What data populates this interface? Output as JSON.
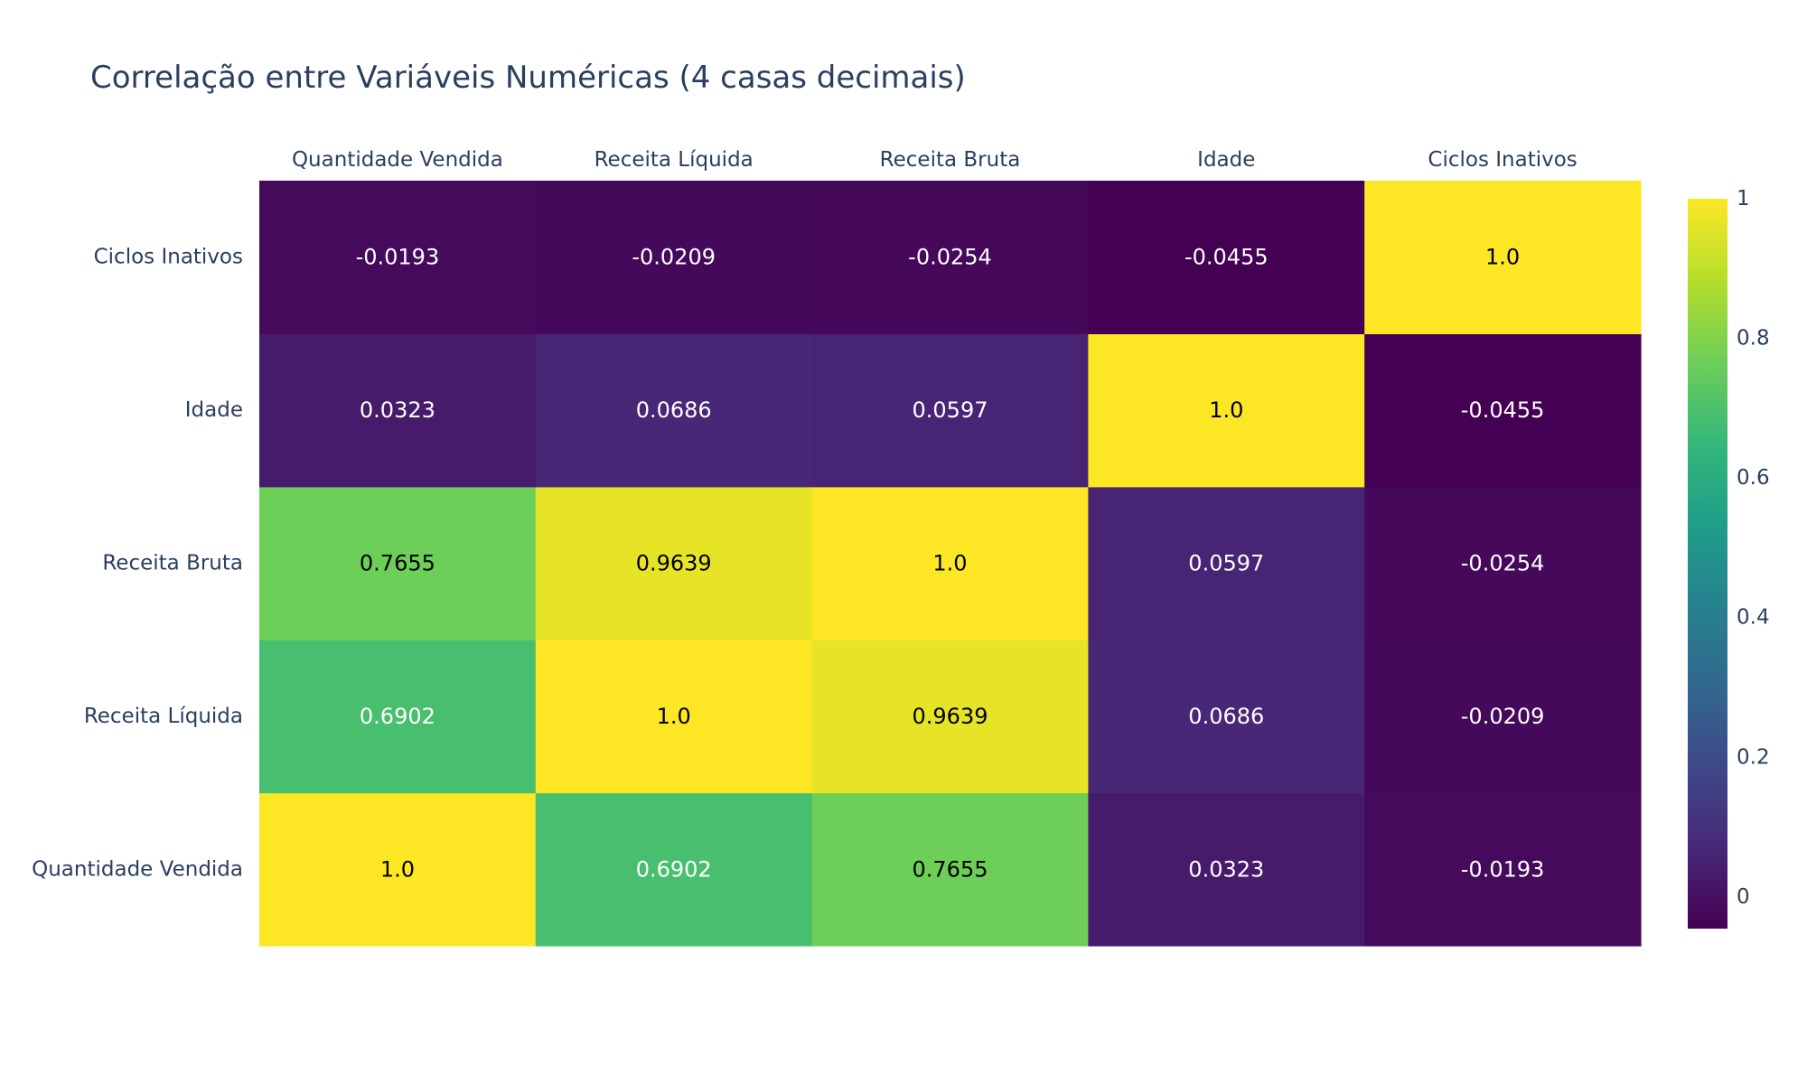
{
  "chart_data": {
    "type": "heatmap",
    "title": "Correlação entre Variáveis Numéricas (4 casas decimais)",
    "x": [
      "Quantidade Vendida",
      "Receita Líquida",
      "Receita Bruta",
      "Idade",
      "Ciclos Inativos"
    ],
    "y": [
      "Quantidade Vendida",
      "Receita Líquida",
      "Receita Bruta",
      "Idade",
      "Ciclos Inativos"
    ],
    "z": [
      [
        1.0,
        0.6902,
        0.7655,
        0.0323,
        -0.0193
      ],
      [
        0.6902,
        1.0,
        0.9639,
        0.0686,
        -0.0209
      ],
      [
        0.7655,
        0.9639,
        1.0,
        0.0597,
        -0.0254
      ],
      [
        0.0323,
        0.0686,
        0.0597,
        1.0,
        -0.0455
      ],
      [
        -0.0193,
        -0.0209,
        -0.0254,
        -0.0455,
        1.0
      ]
    ],
    "text": [
      [
        "1.0",
        "0.6902",
        "0.7655",
        "0.0323",
        "-0.0193"
      ],
      [
        "0.6902",
        "1.0",
        "0.9639",
        "0.0686",
        "-0.0209"
      ],
      [
        "0.7655",
        "0.9639",
        "1.0",
        "0.0597",
        "-0.0254"
      ],
      [
        "0.0323",
        "0.0686",
        "0.0597",
        "1.0",
        "-0.0455"
      ],
      [
        "-0.0193",
        "-0.0209",
        "-0.0254",
        "-0.0455",
        "1.0"
      ]
    ],
    "x_axis_side": "top",
    "colorscale": "Viridis",
    "zrange": [
      -0.0455,
      1.0
    ],
    "colorbar": {
      "tickvals": [
        0,
        0.2,
        0.4,
        0.6,
        0.8,
        1
      ],
      "ticktext": [
        "0",
        "0.2",
        "0.4",
        "0.6",
        "0.8",
        "1"
      ]
    }
  }
}
